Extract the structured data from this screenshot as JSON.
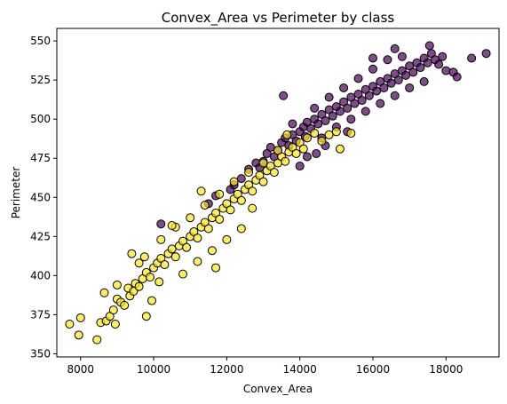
{
  "chart_data": {
    "type": "scatter",
    "title": "Convex_Area vs Perimeter by class",
    "xlabel": "Convex_Area",
    "ylabel": "Perimeter",
    "xlim": [
      7350,
      19450
    ],
    "ylim": [
      348,
      558
    ],
    "xticks": [
      8000,
      10000,
      12000,
      14000,
      16000,
      18000
    ],
    "yticks": [
      350,
      375,
      400,
      425,
      450,
      475,
      500,
      525,
      550
    ],
    "grid": false,
    "legend": "none",
    "marker_edge_color": "#000000",
    "marker_alpha": 0.7,
    "series": [
      {
        "color": "#440154",
        "points": [
          [
            10200,
            433
          ],
          [
            11500,
            446
          ],
          [
            11700,
            451
          ],
          [
            12100,
            455
          ],
          [
            12200,
            458
          ],
          [
            12400,
            462
          ],
          [
            12600,
            468
          ],
          [
            12800,
            472
          ],
          [
            12900,
            469
          ],
          [
            13000,
            473
          ],
          [
            13100,
            478
          ],
          [
            13200,
            482
          ],
          [
            13300,
            476
          ],
          [
            13400,
            480
          ],
          [
            13500,
            485
          ],
          [
            13550,
            515
          ],
          [
            13600,
            488
          ],
          [
            13700,
            483
          ],
          [
            13800,
            490
          ],
          [
            13900,
            486
          ],
          [
            14000,
            492
          ],
          [
            14100,
            495
          ],
          [
            14150,
            489
          ],
          [
            14200,
            498
          ],
          [
            14300,
            494
          ],
          [
            14400,
            500
          ],
          [
            14450,
            478
          ],
          [
            14500,
            497
          ],
          [
            14600,
            503
          ],
          [
            14700,
            499
          ],
          [
            14800,
            506
          ],
          [
            14900,
            502
          ],
          [
            15000,
            508
          ],
          [
            15100,
            505
          ],
          [
            15200,
            511
          ],
          [
            15300,
            507
          ],
          [
            15400,
            514
          ],
          [
            15500,
            510
          ],
          [
            15600,
            516
          ],
          [
            15700,
            512
          ],
          [
            15800,
            519
          ],
          [
            15900,
            515
          ],
          [
            16000,
            521
          ],
          [
            16100,
            518
          ],
          [
            16200,
            524
          ],
          [
            16300,
            520
          ],
          [
            16400,
            526
          ],
          [
            16500,
            523
          ],
          [
            16600,
            529
          ],
          [
            16700,
            525
          ],
          [
            16800,
            531
          ],
          [
            16900,
            528
          ],
          [
            17000,
            534
          ],
          [
            17100,
            530
          ],
          [
            17200,
            536
          ],
          [
            17300,
            533
          ],
          [
            17400,
            539
          ],
          [
            17500,
            536
          ],
          [
            17550,
            547
          ],
          [
            17600,
            542
          ],
          [
            17700,
            538
          ],
          [
            17800,
            535
          ],
          [
            17900,
            540
          ],
          [
            18000,
            531
          ],
          [
            18200,
            530
          ],
          [
            18300,
            527
          ],
          [
            18700,
            539
          ],
          [
            19100,
            542
          ],
          [
            14000,
            470
          ],
          [
            14200,
            476
          ],
          [
            14600,
            488
          ],
          [
            15000,
            495
          ],
          [
            15400,
            500
          ],
          [
            15800,
            505
          ],
          [
            16200,
            510
          ],
          [
            16600,
            515
          ],
          [
            17000,
            520
          ],
          [
            17400,
            524
          ],
          [
            15200,
            520
          ],
          [
            15600,
            526
          ],
          [
            16000,
            532
          ],
          [
            16400,
            538
          ],
          [
            16800,
            540
          ],
          [
            13800,
            497
          ],
          [
            14400,
            507
          ],
          [
            14800,
            514
          ],
          [
            16600,
            545
          ],
          [
            16000,
            539
          ],
          [
            15300,
            492
          ],
          [
            14700,
            483
          ]
        ]
      },
      {
        "color": "#fde725",
        "points": [
          [
            7700,
            369
          ],
          [
            7950,
            362
          ],
          [
            8000,
            373
          ],
          [
            8450,
            359
          ],
          [
            8550,
            370
          ],
          [
            8650,
            389
          ],
          [
            8700,
            371
          ],
          [
            8800,
            374
          ],
          [
            8900,
            378
          ],
          [
            8950,
            369
          ],
          [
            9000,
            385
          ],
          [
            9100,
            383
          ],
          [
            9200,
            381
          ],
          [
            9300,
            392
          ],
          [
            9350,
            387
          ],
          [
            9400,
            414
          ],
          [
            9450,
            390
          ],
          [
            9500,
            395
          ],
          [
            9600,
            393
          ],
          [
            9700,
            398
          ],
          [
            9800,
            374
          ],
          [
            9800,
            402
          ],
          [
            9900,
            399
          ],
          [
            10000,
            405
          ],
          [
            10100,
            408
          ],
          [
            10150,
            396
          ],
          [
            10200,
            411
          ],
          [
            10300,
            407
          ],
          [
            10400,
            414
          ],
          [
            10500,
            417
          ],
          [
            10600,
            412
          ],
          [
            10700,
            419
          ],
          [
            10800,
            422
          ],
          [
            10900,
            418
          ],
          [
            11000,
            425
          ],
          [
            11100,
            428
          ],
          [
            11200,
            424
          ],
          [
            11300,
            431
          ],
          [
            11400,
            434
          ],
          [
            11500,
            430
          ],
          [
            11600,
            437
          ],
          [
            11700,
            440
          ],
          [
            11800,
            436
          ],
          [
            11900,
            443
          ],
          [
            12000,
            446
          ],
          [
            12100,
            442
          ],
          [
            12200,
            449
          ],
          [
            12300,
            452
          ],
          [
            12400,
            448
          ],
          [
            12500,
            455
          ],
          [
            12600,
            458
          ],
          [
            12700,
            454
          ],
          [
            12800,
            461
          ],
          [
            12900,
            464
          ],
          [
            13000,
            460
          ],
          [
            13100,
            467
          ],
          [
            13200,
            470
          ],
          [
            13300,
            466
          ],
          [
            13400,
            472
          ],
          [
            13500,
            476
          ],
          [
            13600,
            473
          ],
          [
            13700,
            479
          ],
          [
            13800,
            482
          ],
          [
            13900,
            478
          ],
          [
            14000,
            485
          ],
          [
            14100,
            481
          ],
          [
            14200,
            488
          ],
          [
            14400,
            491
          ],
          [
            14600,
            486
          ],
          [
            14800,
            490
          ],
          [
            15000,
            492
          ],
          [
            15100,
            481
          ],
          [
            15400,
            491
          ],
          [
            10200,
            423
          ],
          [
            10600,
            431
          ],
          [
            11000,
            437
          ],
          [
            11400,
            445
          ],
          [
            11800,
            452
          ],
          [
            12200,
            460
          ],
          [
            12600,
            466
          ],
          [
            13000,
            472
          ],
          [
            13400,
            480
          ],
          [
            10800,
            401
          ],
          [
            11200,
            409
          ],
          [
            11600,
            416
          ],
          [
            12000,
            423
          ],
          [
            12400,
            430
          ],
          [
            9600,
            408
          ],
          [
            9000,
            394
          ],
          [
            11300,
            454
          ],
          [
            10500,
            432
          ],
          [
            11700,
            405
          ],
          [
            12700,
            443
          ],
          [
            9750,
            412
          ],
          [
            13650,
            490
          ],
          [
            9950,
            384
          ]
        ]
      }
    ]
  }
}
